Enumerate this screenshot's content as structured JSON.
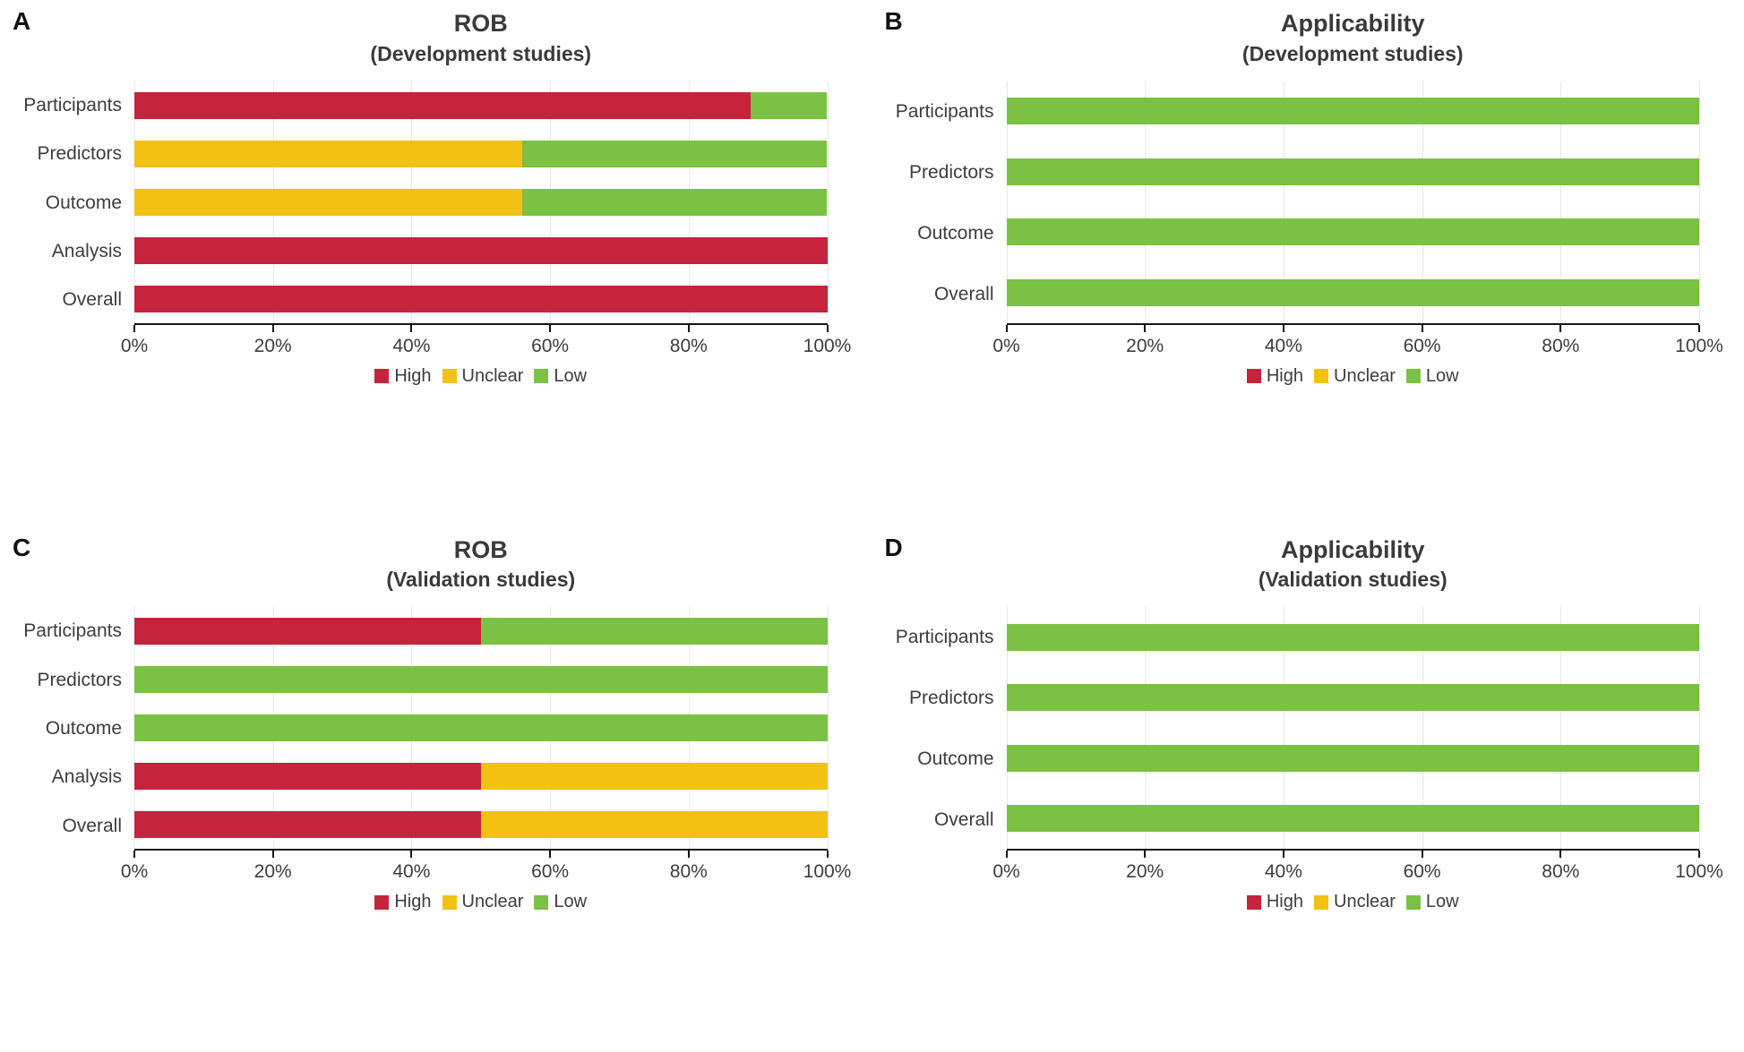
{
  "figure": {
    "background": "#ffffff",
    "description": "Four-panel stacked horizontal bar figure showing risk of bias (ROB) and applicability ratings"
  },
  "palette": {
    "High": "#C5243C",
    "Unclear": "#F2C114",
    "Low": "#7BC144"
  },
  "axis": {
    "tick_values": [
      0,
      20,
      40,
      60,
      80,
      100
    ],
    "tick_labels": [
      "0%",
      "20%",
      "40%",
      "60%",
      "80%",
      "100%"
    ]
  },
  "legend_labels": [
    "High",
    "Unclear",
    "Low"
  ],
  "chart_data": [
    {
      "panel": "A",
      "type": "bar",
      "stacked": true,
      "orientation": "horizontal",
      "title": "ROB",
      "subtitle": "(Development studies)",
      "categories": [
        "Participants",
        "Predictors",
        "Outcome",
        "Analysis",
        "Overall"
      ],
      "series": [
        {
          "name": "High",
          "color": "#C5243C",
          "values": [
            89,
            0,
            0,
            100,
            100
          ]
        },
        {
          "name": "Unclear",
          "color": "#F2C114",
          "values": [
            0,
            56,
            56,
            0,
            0
          ]
        },
        {
          "name": "Low",
          "color": "#7BC144",
          "values": [
            11,
            44,
            44,
            0,
            0
          ]
        }
      ],
      "xlabel": "",
      "ylabel": "",
      "xlim": [
        0,
        100
      ],
      "xticks": [
        "0%",
        "20%",
        "40%",
        "60%",
        "80%",
        "100%"
      ],
      "grid": true,
      "legend_position": "bottom"
    },
    {
      "panel": "B",
      "type": "bar",
      "stacked": true,
      "orientation": "horizontal",
      "title": "Applicability",
      "subtitle": "(Development studies)",
      "categories": [
        "Participants",
        "Predictors",
        "Outcome",
        "Overall"
      ],
      "series": [
        {
          "name": "High",
          "color": "#C5243C",
          "values": [
            0,
            0,
            0,
            0
          ]
        },
        {
          "name": "Unclear",
          "color": "#F2C114",
          "values": [
            0,
            0,
            0,
            0
          ]
        },
        {
          "name": "Low",
          "color": "#7BC144",
          "values": [
            100,
            100,
            100,
            100
          ]
        }
      ],
      "xlabel": "",
      "ylabel": "",
      "xlim": [
        0,
        100
      ],
      "xticks": [
        "0%",
        "20%",
        "40%",
        "60%",
        "80%",
        "100%"
      ],
      "grid": true,
      "legend_position": "bottom"
    },
    {
      "panel": "C",
      "type": "bar",
      "stacked": true,
      "orientation": "horizontal",
      "title": "ROB",
      "subtitle": "(Validation studies)",
      "categories": [
        "Participants",
        "Predictors",
        "Outcome",
        "Analysis",
        "Overall"
      ],
      "series": [
        {
          "name": "High",
          "color": "#C5243C",
          "values": [
            50,
            0,
            0,
            50,
            50
          ]
        },
        {
          "name": "Unclear",
          "color": "#F2C114",
          "values": [
            0,
            0,
            0,
            50,
            50
          ]
        },
        {
          "name": "Low",
          "color": "#7BC144",
          "values": [
            50,
            100,
            100,
            0,
            0
          ]
        }
      ],
      "xlabel": "",
      "ylabel": "",
      "xlim": [
        0,
        100
      ],
      "xticks": [
        "0%",
        "20%",
        "40%",
        "60%",
        "80%",
        "100%"
      ],
      "grid": true,
      "legend_position": "bottom"
    },
    {
      "panel": "D",
      "type": "bar",
      "stacked": true,
      "orientation": "horizontal",
      "title": "Applicability",
      "subtitle": "(Validation studies)",
      "categories": [
        "Participants",
        "Predictors",
        "Outcome",
        "Overall"
      ],
      "series": [
        {
          "name": "High",
          "color": "#C5243C",
          "values": [
            0,
            0,
            0,
            0
          ]
        },
        {
          "name": "Unclear",
          "color": "#F2C114",
          "values": [
            0,
            0,
            0,
            0
          ]
        },
        {
          "name": "Low",
          "color": "#7BC144",
          "values": [
            100,
            100,
            100,
            100
          ]
        }
      ],
      "xlabel": "",
      "ylabel": "",
      "xlim": [
        0,
        100
      ],
      "xticks": [
        "0%",
        "20%",
        "40%",
        "60%",
        "80%",
        "100%"
      ],
      "grid": true,
      "legend_position": "bottom"
    }
  ]
}
